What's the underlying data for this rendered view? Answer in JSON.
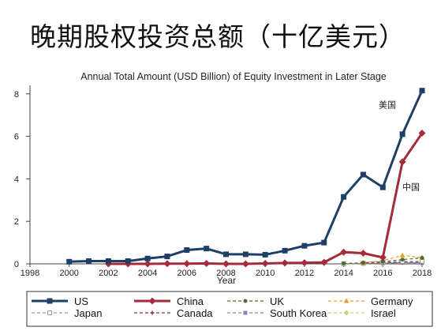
{
  "slide_title": "晚期股权投资总额（十亿美元）",
  "chart_data": {
    "type": "line",
    "title": "Annual Total Amount (USD Billion) of Equity Investment in Later Stage",
    "xlabel": "Year",
    "ylabel": "",
    "xlim": [
      1998,
      2018
    ],
    "ylim": [
      0,
      8.4
    ],
    "x_ticks": [
      1998,
      2000,
      2002,
      2004,
      2006,
      2008,
      2010,
      2012,
      2014,
      2016,
      2018
    ],
    "y_ticks": [
      0,
      2,
      4,
      6,
      8
    ],
    "grid": false,
    "legend_position": "bottom",
    "annotations": [
      {
        "text": "美国",
        "series": "US"
      },
      {
        "text": "中国",
        "series": "China"
      }
    ],
    "series": [
      {
        "name": "US",
        "color": "#1f3f66",
        "marker": "square",
        "line": "solid",
        "x": [
          2000,
          2001,
          2002,
          2003,
          2004,
          2005,
          2006,
          2007,
          2008,
          2009,
          2010,
          2011,
          2012,
          2013,
          2014,
          2015,
          2016,
          2017,
          2018
        ],
        "values": [
          0.1,
          0.13,
          0.13,
          0.13,
          0.25,
          0.35,
          0.65,
          0.72,
          0.45,
          0.45,
          0.43,
          0.62,
          0.85,
          1.0,
          3.15,
          4.2,
          3.6,
          6.1,
          8.15
        ]
      },
      {
        "name": "China",
        "color": "#a52a3a",
        "marker": "diamond",
        "line": "solid",
        "x": [
          2002,
          2003,
          2004,
          2005,
          2006,
          2007,
          2008,
          2009,
          2010,
          2011,
          2012,
          2013,
          2014,
          2015,
          2016,
          2017,
          2018
        ],
        "values": [
          0.0,
          0.0,
          0.0,
          0.01,
          0.01,
          0.02,
          0.0,
          0.0,
          0.02,
          0.04,
          0.05,
          0.07,
          0.55,
          0.5,
          0.3,
          4.8,
          6.15
        ]
      },
      {
        "name": "UK",
        "color": "#4d6b2a",
        "marker": "circle",
        "line": "dash",
        "x": [
          2014,
          2015,
          2016,
          2017,
          2018
        ],
        "values": [
          0.02,
          0.05,
          0.1,
          0.2,
          0.28
        ]
      },
      {
        "name": "Germany",
        "color": "#e0a030",
        "marker": "triangle",
        "line": "dash",
        "x": [
          2015,
          2016,
          2017,
          2018
        ],
        "values": [
          0.05,
          0.15,
          0.4,
          0.3
        ]
      },
      {
        "name": "Japan",
        "color": "#9a9a9a",
        "marker": "square-open",
        "line": "dash",
        "x": [
          2014,
          2015,
          2016,
          2017,
          2018
        ],
        "values": [
          0.01,
          0.03,
          0.08,
          0.12,
          0.12
        ]
      },
      {
        "name": "Canada",
        "color": "#8b2a5a",
        "marker": "plus",
        "line": "dash",
        "x": [
          2014,
          2015,
          2016,
          2017,
          2018
        ],
        "values": [
          0.01,
          0.02,
          0.04,
          0.08,
          0.07
        ]
      },
      {
        "name": "South Korea",
        "color": "#8a80c0",
        "marker": "square",
        "line": "dash",
        "x": [
          2015,
          2016,
          2017,
          2018
        ],
        "values": [
          0.01,
          0.03,
          0.06,
          0.04
        ]
      },
      {
        "name": "Israel",
        "color": "#c7d27a",
        "marker": "diamond",
        "line": "dash",
        "x": [
          2014,
          2015,
          2016,
          2017,
          2018
        ],
        "values": [
          0.0,
          0.01,
          0.02,
          0.05,
          0.06
        ]
      }
    ],
    "legend_order": [
      "US",
      "China",
      "UK",
      "Germany",
      "Japan",
      "Canada",
      "South Korea",
      "Israel"
    ]
  }
}
